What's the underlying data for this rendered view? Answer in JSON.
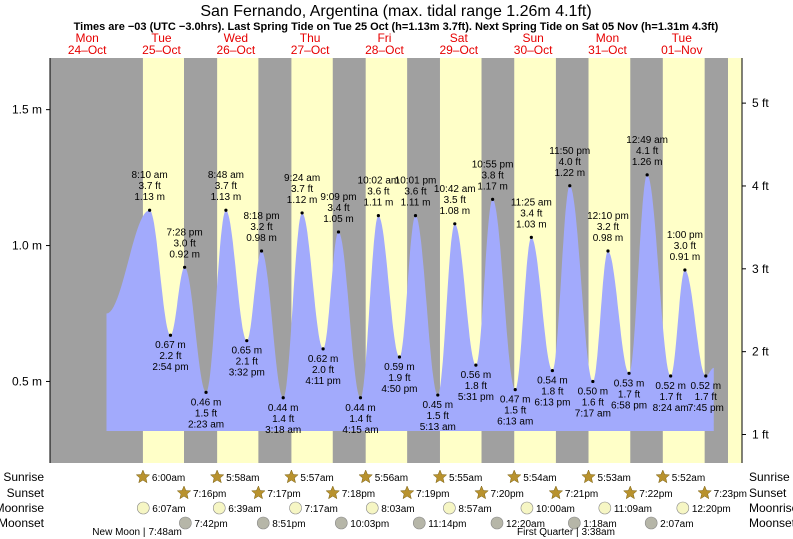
{
  "chart_data": {
    "type": "area",
    "title": "San Fernando, Argentina (max. tidal range 1.26m 4.1ft)",
    "subtitle": "Times are −03 (UTC −3.0hrs). Last Spring Tide on Tue 25 Oct (h=1.13m 3.7ft). Next Spring Tide on Sat 05 Nov (h=1.31m 4.3ft)",
    "ylabel_left_unit": "m",
    "ylabel_right_unit": "ft",
    "ylim_m": [
      0.2,
      1.69
    ],
    "x_range_days": [
      0.0,
      9.31
    ],
    "left_ticks": [
      "0.5 m",
      "1.0 m",
      "1.5 m"
    ],
    "left_tick_values": [
      0.5,
      1.0,
      1.5
    ],
    "right_ticks": [
      "1 ft",
      "2 ft",
      "3 ft",
      "4 ft",
      "5 ft"
    ],
    "right_tick_values": [
      1,
      2,
      3,
      4,
      5
    ],
    "days": [
      {
        "dow": "Mon",
        "date": "24–Oct",
        "sunrise": null,
        "sunset": null
      },
      {
        "dow": "Tue",
        "date": "25–Oct",
        "sunrise": "6:00am",
        "sunset": "7:16pm"
      },
      {
        "dow": "Wed",
        "date": "26–Oct",
        "sunrise": "5:58am",
        "sunset": "7:17pm"
      },
      {
        "dow": "Thu",
        "date": "27–Oct",
        "sunrise": "5:57am",
        "sunset": "7:18pm"
      },
      {
        "dow": "Fri",
        "date": "28–Oct",
        "sunrise": "5:56am",
        "sunset": "7:19pm"
      },
      {
        "dow": "Sat",
        "date": "29–Oct",
        "sunrise": "5:55am",
        "sunset": "7:20pm"
      },
      {
        "dow": "Sun",
        "date": "30–Oct",
        "sunrise": "5:54am",
        "sunset": "7:21pm"
      },
      {
        "dow": "Mon",
        "date": "31–Oct",
        "sunrise": "5:53am",
        "sunset": "7:22pm"
      },
      {
        "dow": "Tue",
        "date": "01–Nov",
        "sunrise": "5:52am",
        "sunset": "7:23pm"
      }
    ],
    "tides": [
      {
        "day": 1,
        "time": "8:10 am",
        "m": 1.13,
        "ft": "3.7 ft",
        "hi": true
      },
      {
        "day": 1,
        "time": "2:54 pm",
        "m": 0.67,
        "ft": "2.2 ft",
        "hi": false
      },
      {
        "day": 1,
        "time": "7:28 pm",
        "m": 0.92,
        "ft": "3.0 ft",
        "hi": true
      },
      {
        "day": 2,
        "time": "2:23 am",
        "m": 0.46,
        "ft": "1.5 ft",
        "hi": false
      },
      {
        "day": 2,
        "time": "8:48 am",
        "m": 1.13,
        "ft": "3.7 ft",
        "hi": true
      },
      {
        "day": 2,
        "time": "3:32 pm",
        "m": 0.65,
        "ft": "2.1 ft",
        "hi": false
      },
      {
        "day": 2,
        "time": "8:18 pm",
        "m": 0.98,
        "ft": "3.2 ft",
        "hi": true
      },
      {
        "day": 3,
        "time": "3:18 am",
        "m": 0.44,
        "ft": "1.4 ft",
        "hi": false
      },
      {
        "day": 3,
        "time": "9:24 am",
        "m": 1.12,
        "ft": "3.7 ft",
        "hi": true
      },
      {
        "day": 3,
        "time": "4:11 pm",
        "m": 0.62,
        "ft": "2.0 ft",
        "hi": false
      },
      {
        "day": 3,
        "time": "9:09 pm",
        "m": 1.05,
        "ft": "3.4 ft",
        "hi": true
      },
      {
        "day": 4,
        "time": "4:15 am",
        "m": 0.44,
        "ft": "1.4 ft",
        "hi": false
      },
      {
        "day": 4,
        "time": "10:02 am",
        "m": 1.11,
        "ft": "3.6 ft",
        "hi": true
      },
      {
        "day": 4,
        "time": "4:50 pm",
        "m": 0.59,
        "ft": "1.9 ft",
        "hi": false
      },
      {
        "day": 4,
        "time": "10:01 pm",
        "m": 1.11,
        "ft": "3.6 ft",
        "hi": true
      },
      {
        "day": 5,
        "time": "5:13 am",
        "m": 0.45,
        "ft": "1.5 ft",
        "hi": false
      },
      {
        "day": 5,
        "time": "10:42 am",
        "m": 1.08,
        "ft": "3.5 ft",
        "hi": true
      },
      {
        "day": 5,
        "time": "5:31 pm",
        "m": 0.56,
        "ft": "1.8 ft",
        "hi": false
      },
      {
        "day": 5,
        "time": "10:55 pm",
        "m": 1.17,
        "ft": "3.8 ft",
        "hi": true
      },
      {
        "day": 6,
        "time": "6:13 am",
        "m": 0.47,
        "ft": "1.5 ft",
        "hi": false
      },
      {
        "day": 6,
        "time": "11:25 am",
        "m": 1.03,
        "ft": "3.4 ft",
        "hi": true
      },
      {
        "day": 6,
        "time": "6:13 pm",
        "m": 0.54,
        "ft": "1.8 ft",
        "hi": false
      },
      {
        "day": 6,
        "time": "11:50 pm",
        "m": 1.22,
        "ft": "4.0 ft",
        "hi": true
      },
      {
        "day": 7,
        "time": "7:17 am",
        "m": 0.5,
        "ft": "1.6 ft",
        "hi": false
      },
      {
        "day": 7,
        "time": "12:10 pm",
        "m": 0.98,
        "ft": "3.2 ft",
        "hi": true
      },
      {
        "day": 7,
        "time": "6:58 pm",
        "m": 0.53,
        "ft": "1.7 ft",
        "hi": false
      },
      {
        "day": 8,
        "time": "12:49 am",
        "m": 1.26,
        "ft": "4.1 ft",
        "hi": true
      },
      {
        "day": 8,
        "time": "8:24 am",
        "m": 0.52,
        "ft": "1.7 ft",
        "hi": false
      },
      {
        "day": 8,
        "time": "1:00 pm",
        "m": 0.91,
        "ft": "3.0 ft",
        "hi": true
      },
      {
        "day": 8,
        "time": "7:45 pm",
        "m": 0.52,
        "ft": "1.7 ft",
        "hi": false
      }
    ],
    "bottom_rows": [
      {
        "label": "Sunrise",
        "items": [
          {
            "day": 1,
            "time": "6:00am"
          },
          {
            "day": 2,
            "time": "5:58am"
          },
          {
            "day": 3,
            "time": "5:57am"
          },
          {
            "day": 4,
            "time": "5:56am"
          },
          {
            "day": 5,
            "time": "5:55am"
          },
          {
            "day": 6,
            "time": "5:54am"
          },
          {
            "day": 7,
            "time": "5:53am"
          },
          {
            "day": 8,
            "time": "5:52am"
          }
        ]
      },
      {
        "label": "Sunset",
        "items": [
          {
            "day": 1,
            "time": "7:16pm"
          },
          {
            "day": 2,
            "time": "7:17pm"
          },
          {
            "day": 3,
            "time": "7:18pm"
          },
          {
            "day": 4,
            "time": "7:19pm"
          },
          {
            "day": 5,
            "time": "7:20pm"
          },
          {
            "day": 6,
            "time": "7:21pm"
          },
          {
            "day": 7,
            "time": "7:22pm"
          },
          {
            "day": 8,
            "time": "7:23pm"
          }
        ]
      },
      {
        "label": "Moonrise",
        "items": [
          {
            "day": 1,
            "time": "6:07am"
          },
          {
            "day": 2,
            "time": "6:39am"
          },
          {
            "day": 3,
            "time": "7:17am"
          },
          {
            "day": 4,
            "time": "8:03am"
          },
          {
            "day": 5,
            "time": "8:57am"
          },
          {
            "day": 6,
            "time": "10:00am"
          },
          {
            "day": 7,
            "time": "11:09am"
          },
          {
            "day": 8,
            "time": "12:20pm"
          }
        ]
      },
      {
        "label": "Moonset",
        "items": [
          {
            "day": 1,
            "time": "7:42pm"
          },
          {
            "day": 2,
            "time": "8:51pm"
          },
          {
            "day": 3,
            "time": "10:03pm"
          },
          {
            "day": 4,
            "time": "11:14pm"
          },
          {
            "day": 6,
            "time": "12:20am"
          },
          {
            "day": 7,
            "time": "1:18am"
          },
          {
            "day": 8,
            "time": "2:07am"
          }
        ]
      }
    ],
    "moon_phases": [
      {
        "day": 1,
        "time": "7:48am",
        "label": "New Moon"
      },
      {
        "day": 7,
        "time": "3:38am",
        "label": "First Quarter"
      }
    ],
    "colors": {
      "night": "#a0a0a0",
      "day": "#ffffc8",
      "water": "#a2aafc",
      "sun_icon": "#b8922e",
      "moon_icon": "#f6f6c4",
      "moon_dark": "#b6b6a8",
      "date_text": "#e60000"
    }
  }
}
